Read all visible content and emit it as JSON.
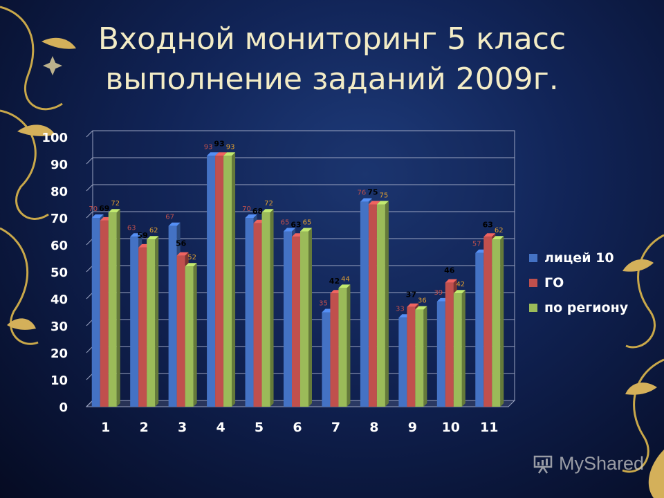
{
  "title": {
    "line1": "Входной мониторинг 5 класс",
    "line2": "выполнение заданий 2009г."
  },
  "watermark": {
    "text": "MyShared",
    "icon": "presentation-board-icon"
  },
  "colors": {
    "series": [
      "#4472c4",
      "#c0504d",
      "#9bbb59"
    ],
    "label_dark": "#000000",
    "label_red": "#c0504d",
    "label_orange": "#e2a030",
    "axis_text": "#ffffff",
    "title": "#f3ecc6"
  },
  "chart_data": {
    "type": "bar",
    "style": "3d-clustered-column",
    "categories": [
      "1",
      "2",
      "3",
      "4",
      "5",
      "6",
      "7",
      "8",
      "9",
      "10",
      "11"
    ],
    "series": [
      {
        "name": "лицей 10",
        "values": [
          70,
          63,
          67,
          93,
          70,
          65,
          35,
          76,
          33,
          39,
          57
        ]
      },
      {
        "name": "ГО",
        "values": [
          69,
          59,
          56,
          93,
          68,
          63,
          42,
          75,
          37,
          46,
          63
        ]
      },
      {
        "name": "по региону",
        "values": [
          72,
          62,
          52,
          93,
          72,
          65,
          44,
          75,
          36,
          42,
          62
        ]
      }
    ],
    "ylim": [
      0,
      100
    ],
    "yticks": [
      "0",
      "10",
      "20",
      "30",
      "40",
      "50",
      "60",
      "70",
      "80",
      "90",
      "100"
    ],
    "grid": true,
    "legend_position": "right"
  }
}
